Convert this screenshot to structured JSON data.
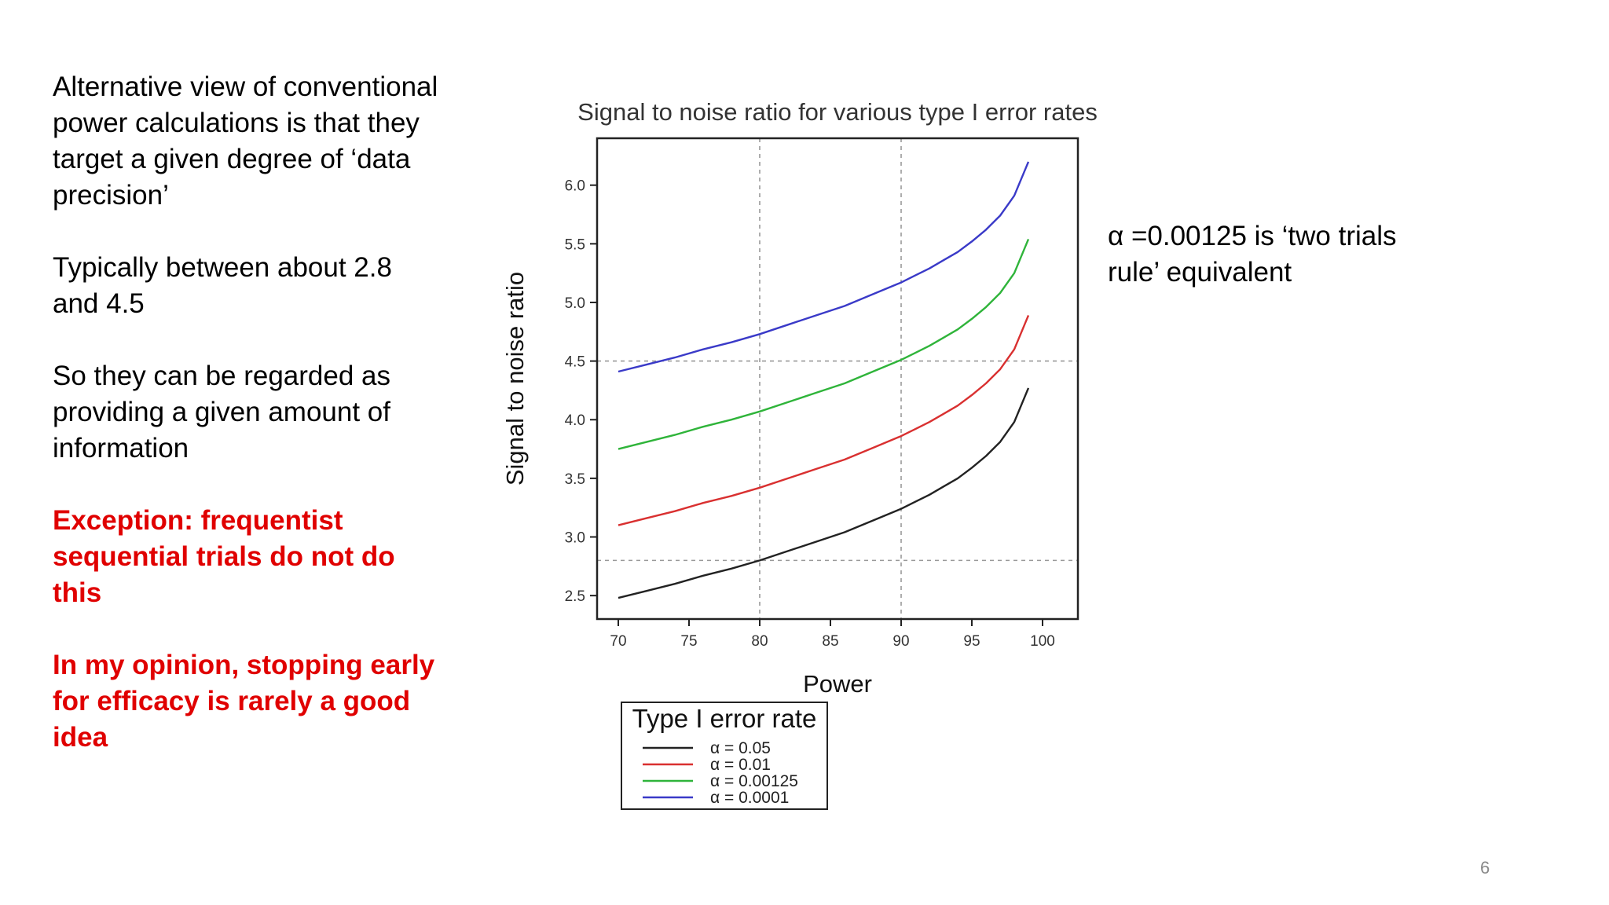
{
  "left_text": {
    "p1": "Alternative view of conventional power calculations is that they target a given degree of ‘data precision’",
    "p2": "Typically between about 2.8 and 4.5",
    "p3": "So they can be regarded as providing a given amount of information",
    "p4": "Exception: frequentist sequential trials do not do this",
    "p5": "In my opinion, stopping early for efficacy is rarely a good idea"
  },
  "right_note": "α =0.00125 is ‘two trials rule’ equivalent",
  "page_number": "6",
  "colors": {
    "emphasis_red": "#e00000",
    "alpha_0.05": "#222222",
    "alpha_0.01": "#d93030",
    "alpha_0.00125": "#2fb43a",
    "alpha_0.0001": "#3a3ac8"
  },
  "chart_data": {
    "type": "line",
    "title": "Signal to noise ratio for various type I error rates",
    "xlabel": "Power",
    "ylabel": "Signal to noise ratio",
    "xlim": [
      68.5,
      102.5
    ],
    "ylim": [
      2.3,
      6.4
    ],
    "xticks": [
      "70",
      "75",
      "80",
      "85",
      "90",
      "95",
      "100"
    ],
    "yticks": [
      "2.5",
      "3.0",
      "3.5",
      "4.0",
      "4.5",
      "5.0",
      "5.5",
      "6.0"
    ],
    "reference_lines": {
      "vertical": [
        80,
        90
      ],
      "horizontal": [
        2.8,
        4.5
      ]
    },
    "x": [
      70,
      72,
      74,
      76,
      78,
      80,
      82,
      84,
      86,
      88,
      90,
      91,
      92,
      93,
      94,
      95,
      96,
      97,
      98,
      99
    ],
    "series": [
      {
        "name": "α = 0.05",
        "color": "#222222",
        "values": [
          2.48,
          2.54,
          2.6,
          2.67,
          2.73,
          2.8,
          2.88,
          2.96,
          3.04,
          3.14,
          3.24,
          3.3,
          3.36,
          3.43,
          3.5,
          3.59,
          3.69,
          3.81,
          3.98,
          4.27
        ]
      },
      {
        "name": "α = 0.01",
        "color": "#d93030",
        "values": [
          3.1,
          3.16,
          3.22,
          3.29,
          3.35,
          3.42,
          3.5,
          3.58,
          3.66,
          3.76,
          3.86,
          3.92,
          3.98,
          4.05,
          4.12,
          4.21,
          4.31,
          4.43,
          4.6,
          4.89
        ]
      },
      {
        "name": "α = 0.00125",
        "color": "#2fb43a",
        "values": [
          3.75,
          3.81,
          3.87,
          3.94,
          4.0,
          4.07,
          4.15,
          4.23,
          4.31,
          4.41,
          4.51,
          4.57,
          4.63,
          4.7,
          4.77,
          4.86,
          4.96,
          5.08,
          5.25,
          5.54
        ]
      },
      {
        "name": "α = 0.0001",
        "color": "#3a3ac8",
        "values": [
          4.41,
          4.47,
          4.53,
          4.6,
          4.66,
          4.73,
          4.81,
          4.89,
          4.97,
          5.07,
          5.17,
          5.23,
          5.29,
          5.36,
          5.43,
          5.52,
          5.62,
          5.74,
          5.91,
          6.2
        ]
      }
    ],
    "legend": {
      "title": "Type I error rate",
      "placement": "bottom-left, below plot"
    }
  }
}
